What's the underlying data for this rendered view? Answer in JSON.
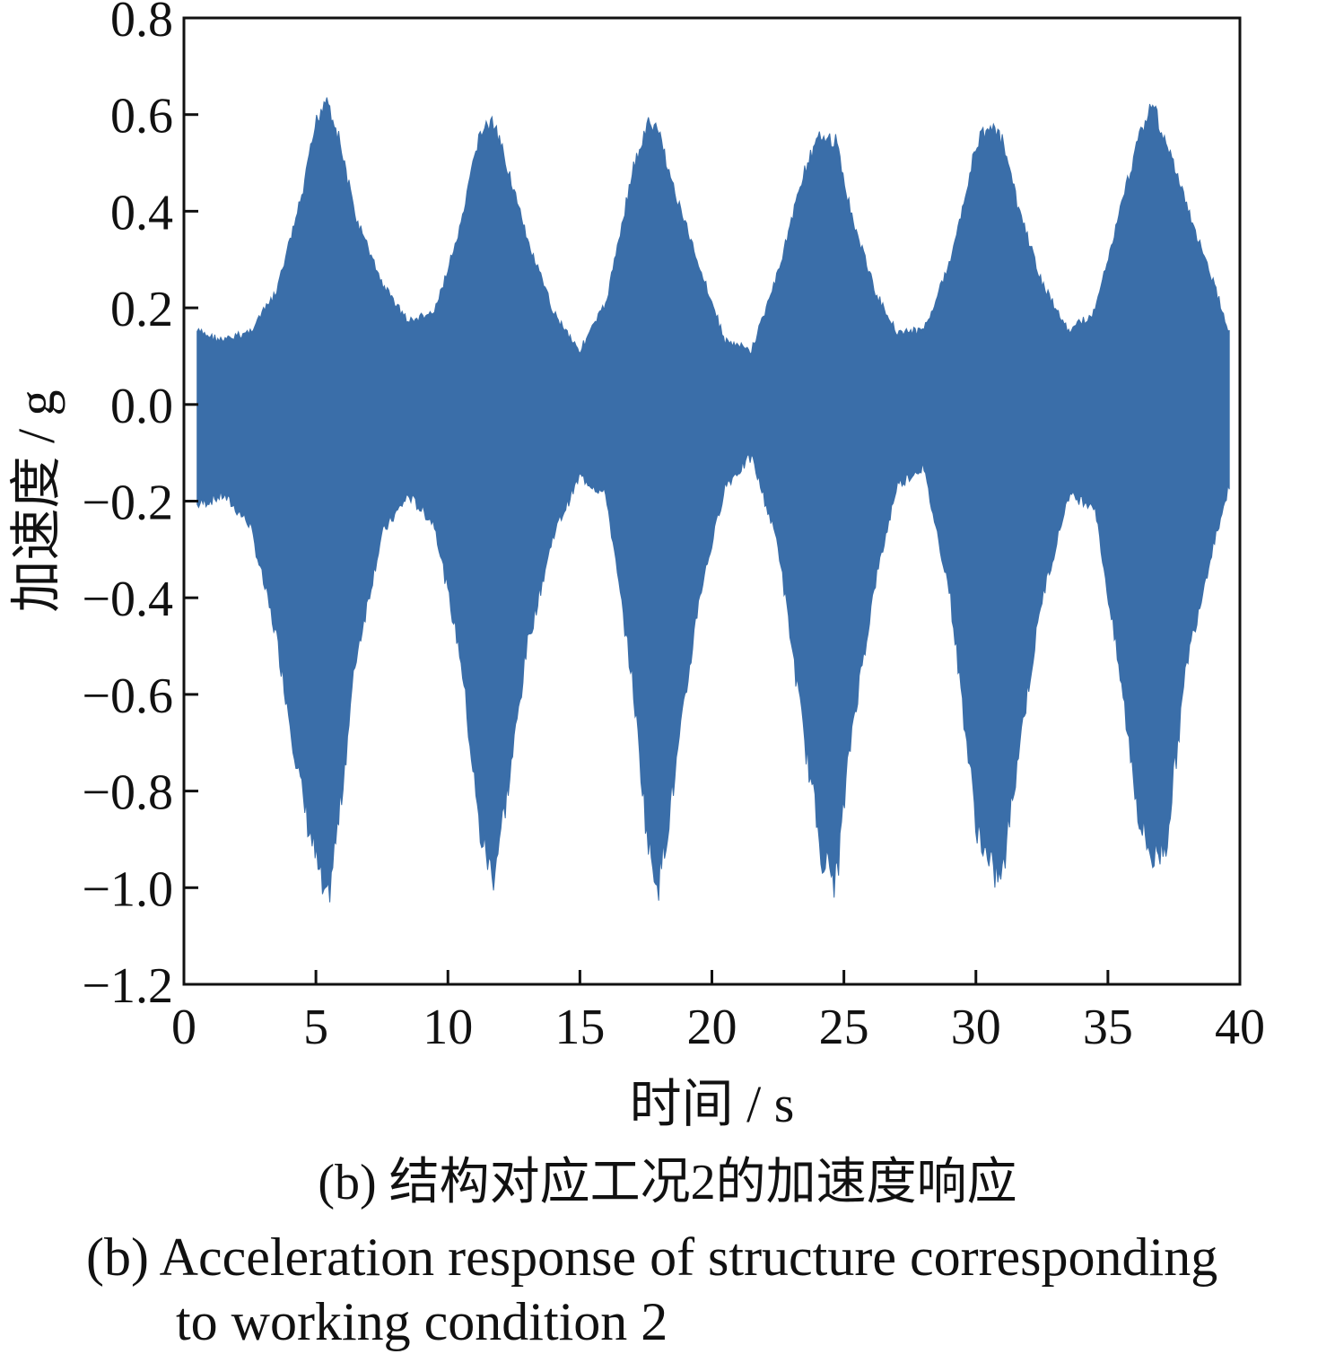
{
  "chart_data": {
    "type": "area",
    "xlabel": "时间 / s",
    "ylabel": "加速度 / g",
    "xlim": [
      0,
      40
    ],
    "ylim": [
      -1.2,
      0.8
    ],
    "xticks": [
      "0",
      "5",
      "10",
      "15",
      "20",
      "25",
      "30",
      "35",
      "40"
    ],
    "yticks": [
      "0.8",
      "0.6",
      "0.4",
      "0.2",
      "0.0",
      "−0.2",
      "−0.4",
      "−0.6",
      "−0.8",
      "−1.0",
      "−1.2"
    ],
    "grid": false,
    "series": [
      {
        "fill_color": "#3a6ea9",
        "x": [
          0.5,
          1.5,
          2.5,
          3.5,
          4.5,
          5.0,
          5.4,
          5.9,
          6.5,
          7.5,
          8.5,
          9.5,
          10.5,
          11.2,
          11.7,
          12.3,
          13.0,
          14.0,
          15.0,
          16.0,
          17.0,
          17.6,
          18.0,
          18.6,
          19.5,
          20.5,
          21.5,
          22.5,
          23.5,
          24.2,
          24.7,
          25.3,
          26.2,
          27.0,
          28.0,
          29.0,
          30.0,
          30.5,
          31.0,
          31.6,
          32.5,
          33.5,
          34.5,
          35.5,
          36.2,
          36.7,
          37.2,
          38.0,
          39.0,
          39.6
        ],
        "upper": [
          0.16,
          0.14,
          0.16,
          0.24,
          0.45,
          0.6,
          0.66,
          0.56,
          0.4,
          0.26,
          0.18,
          0.2,
          0.38,
          0.58,
          0.6,
          0.5,
          0.35,
          0.2,
          0.12,
          0.22,
          0.5,
          0.6,
          0.58,
          0.45,
          0.3,
          0.14,
          0.12,
          0.28,
          0.5,
          0.58,
          0.56,
          0.4,
          0.24,
          0.16,
          0.16,
          0.3,
          0.55,
          0.6,
          0.56,
          0.42,
          0.26,
          0.16,
          0.2,
          0.42,
          0.58,
          0.64,
          0.56,
          0.42,
          0.26,
          0.16
        ],
        "lower": [
          -0.22,
          -0.2,
          -0.26,
          -0.5,
          -0.85,
          -0.98,
          -1.09,
          -0.88,
          -0.55,
          -0.28,
          -0.2,
          -0.26,
          -0.55,
          -0.92,
          -1.02,
          -0.82,
          -0.52,
          -0.28,
          -0.16,
          -0.2,
          -0.6,
          -0.96,
          -1.03,
          -0.8,
          -0.42,
          -0.18,
          -0.12,
          -0.3,
          -0.72,
          -0.98,
          -1.03,
          -0.7,
          -0.38,
          -0.18,
          -0.14,
          -0.4,
          -0.9,
          -1.0,
          -1.02,
          -0.75,
          -0.42,
          -0.2,
          -0.22,
          -0.6,
          -0.9,
          -0.98,
          -0.95,
          -0.55,
          -0.3,
          -0.18
        ]
      }
    ]
  },
  "caption": {
    "cn": "(b) 结构对应工况2的加速度响应",
    "en_line1": "(b) Acceleration response of structure corresponding",
    "en_line2": "to working condition 2"
  }
}
